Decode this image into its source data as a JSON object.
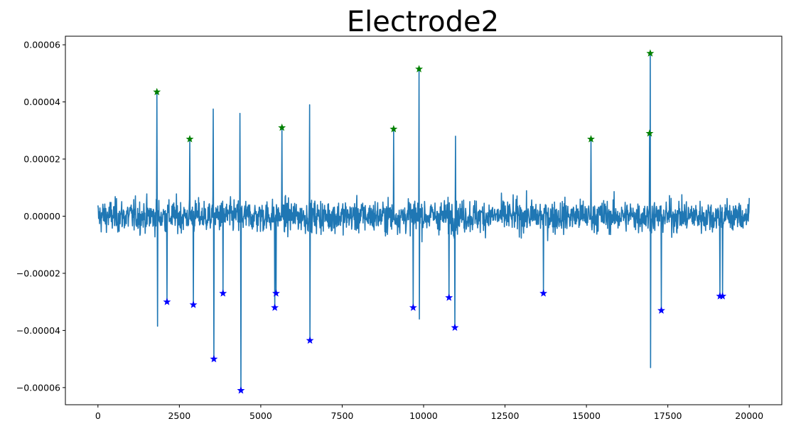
{
  "chart_data": {
    "type": "line",
    "title": "Electrode2",
    "xlabel": "",
    "ylabel": "",
    "xlim": [
      -1000,
      21000
    ],
    "ylim": [
      -6.6e-05,
      6.3e-05
    ],
    "x_ticks": [
      0,
      2500,
      5000,
      7500,
      10000,
      12500,
      15000,
      17500,
      20000
    ],
    "x_tick_labels": [
      "0",
      "2500",
      "5000",
      "7500",
      "10000",
      "12500",
      "15000",
      "17500",
      "20000"
    ],
    "y_ticks": [
      -6e-05,
      -4e-05,
      -2e-05,
      0.0,
      2e-05,
      4e-05,
      6e-05
    ],
    "y_tick_labels": [
      "−0.00006",
      "−0.00004",
      "−0.00002",
      "0.00000",
      "0.00002",
      "0.00004",
      "0.00006"
    ],
    "grid": false,
    "signal": {
      "name": "",
      "color": "#1f77b4",
      "x_start": 0,
      "x_end": 20000,
      "noise_band": [
        -1.6e-05,
        1.6e-05
      ],
      "spikes": [
        {
          "x": 1810,
          "y": 4.35e-05
        },
        {
          "x": 1830,
          "y": -3.85e-05
        },
        {
          "x": 2120,
          "y": -3e-05
        },
        {
          "x": 2820,
          "y": 2.7e-05
        },
        {
          "x": 2930,
          "y": -3.1e-05
        },
        {
          "x": 3540,
          "y": 3.75e-05
        },
        {
          "x": 3560,
          "y": -5e-05
        },
        {
          "x": 3840,
          "y": -2.7e-05
        },
        {
          "x": 4360,
          "y": 3.6e-05
        },
        {
          "x": 4390,
          "y": -6.1e-05
        },
        {
          "x": 5430,
          "y": -3.2e-05
        },
        {
          "x": 5470,
          "y": -2.7e-05
        },
        {
          "x": 5650,
          "y": 3.1e-05
        },
        {
          "x": 6500,
          "y": 3.9e-05
        },
        {
          "x": 6510,
          "y": -4.35e-05
        },
        {
          "x": 9080,
          "y": 3.05e-05
        },
        {
          "x": 9680,
          "y": -3.2e-05
        },
        {
          "x": 9860,
          "y": 5.15e-05
        },
        {
          "x": 9870,
          "y": -3.6e-05
        },
        {
          "x": 10780,
          "y": -2.85e-05
        },
        {
          "x": 10960,
          "y": -3.9e-05
        },
        {
          "x": 10980,
          "y": 2.8e-05
        },
        {
          "x": 13680,
          "y": -2.7e-05
        },
        {
          "x": 15140,
          "y": 2.7e-05
        },
        {
          "x": 16940,
          "y": 2.9e-05
        },
        {
          "x": 16960,
          "y": 5.7e-05
        },
        {
          "x": 16970,
          "y": -5.3e-05
        },
        {
          "x": 17300,
          "y": -3.3e-05
        },
        {
          "x": 19100,
          "y": -2.8e-05
        },
        {
          "x": 19180,
          "y": -2.8e-05
        }
      ]
    },
    "positive_peaks": {
      "color": "#008000",
      "marker": "star",
      "points": [
        {
          "x": 1810,
          "y": 4.35e-05
        },
        {
          "x": 2820,
          "y": 2.7e-05
        },
        {
          "x": 5650,
          "y": 3.1e-05
        },
        {
          "x": 9080,
          "y": 3.05e-05
        },
        {
          "x": 9860,
          "y": 5.15e-05
        },
        {
          "x": 15140,
          "y": 2.7e-05
        },
        {
          "x": 16940,
          "y": 2.9e-05
        },
        {
          "x": 16960,
          "y": 5.7e-05
        }
      ]
    },
    "negative_peaks": {
      "color": "#0000ff",
      "marker": "star",
      "points": [
        {
          "x": 2120,
          "y": -3e-05
        },
        {
          "x": 2930,
          "y": -3.1e-05
        },
        {
          "x": 3560,
          "y": -5e-05
        },
        {
          "x": 3840,
          "y": -2.7e-05
        },
        {
          "x": 4390,
          "y": -6.1e-05
        },
        {
          "x": 5430,
          "y": -3.2e-05
        },
        {
          "x": 5470,
          "y": -2.7e-05
        },
        {
          "x": 6510,
          "y": -4.35e-05
        },
        {
          "x": 9680,
          "y": -3.2e-05
        },
        {
          "x": 10780,
          "y": -2.85e-05
        },
        {
          "x": 10960,
          "y": -3.9e-05
        },
        {
          "x": 13680,
          "y": -2.7e-05
        },
        {
          "x": 17300,
          "y": -3.3e-05
        },
        {
          "x": 19100,
          "y": -2.8e-05
        },
        {
          "x": 19180,
          "y": -2.8e-05
        }
      ]
    }
  }
}
